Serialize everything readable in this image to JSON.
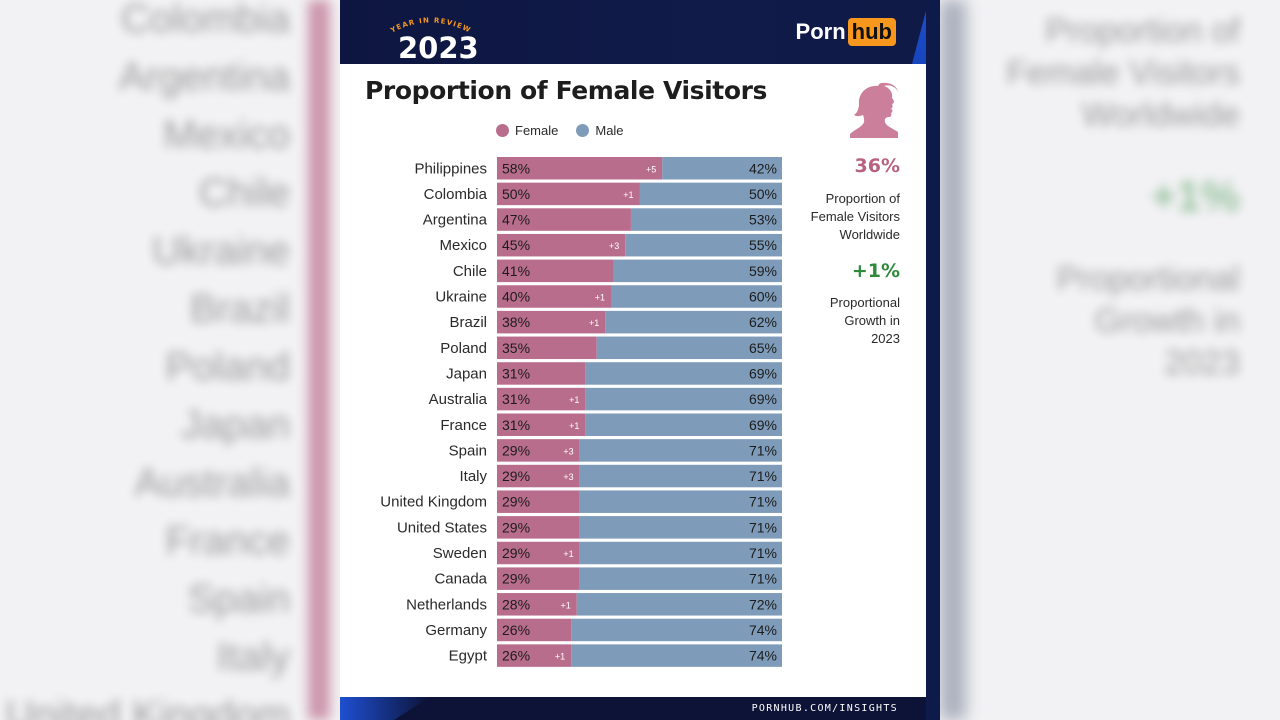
{
  "header": {
    "badge_text": "YEAR IN REVIEW",
    "year": "2023",
    "logo_left": "Porn",
    "logo_right": "hub"
  },
  "colors": {
    "female": "#b86d8c",
    "male": "#7e9bb9",
    "female_stat": "#b8627f",
    "growth": "#2f8a3c",
    "navy": "#0d1640",
    "orange": "#f7971d"
  },
  "chart_data": {
    "type": "bar",
    "orientation": "horizontal",
    "stacked": true,
    "title": "Proportion of Female Visitors",
    "legend": [
      "Female",
      "Male"
    ],
    "legend_position": "top",
    "categories": [
      "Philippines",
      "Colombia",
      "Argentina",
      "Mexico",
      "Chile",
      "Ukraine",
      "Brazil",
      "Poland",
      "Japan",
      "Australia",
      "France",
      "Spain",
      "Italy",
      "United Kingdom",
      "United States",
      "Sweden",
      "Canada",
      "Netherlands",
      "Germany",
      "Egypt"
    ],
    "series": [
      {
        "name": "Female",
        "values": [
          58,
          50,
          47,
          45,
          41,
          40,
          38,
          35,
          31,
          31,
          31,
          29,
          29,
          29,
          29,
          29,
          29,
          28,
          26,
          26
        ]
      },
      {
        "name": "Male",
        "values": [
          42,
          50,
          53,
          55,
          59,
          60,
          62,
          65,
          69,
          69,
          69,
          71,
          71,
          71,
          71,
          71,
          71,
          72,
          74,
          74
        ]
      }
    ],
    "change_labels": [
      "+5",
      "+1",
      "",
      "+3",
      "",
      "+1",
      "+1",
      "",
      "",
      "+1",
      "+1",
      "+3",
      "+3",
      "",
      "",
      "+1",
      "",
      "+1",
      "",
      "+1"
    ],
    "value_format": "{v}%",
    "xlim": [
      0,
      100
    ]
  },
  "sidebar": {
    "stat1_value": "36%",
    "stat1_label_lines": [
      "Proportion of",
      "Female Visitors",
      "Worldwide"
    ],
    "stat2_value": "+1%",
    "stat2_label_lines": [
      "Proportional",
      "Growth in",
      "2023"
    ],
    "icon": "female-silhouette-icon"
  },
  "footer": {
    "url": "PORNHUB.COM/INSIGHTS"
  },
  "background": {
    "left_words": [
      "Colombia",
      "Argentina",
      "Mexico",
      "Chile",
      "Ukraine",
      "Brazil",
      "Poland",
      "Japan",
      "Australia",
      "France",
      "Spain",
      "Italy",
      "United Kingdom"
    ],
    "right_words": [
      "Proportion of",
      "Female Visitors",
      "Worldwide"
    ],
    "right_growth": "+1%",
    "right_growth_words": [
      "Proportional",
      "Growth in",
      "2023"
    ]
  }
}
